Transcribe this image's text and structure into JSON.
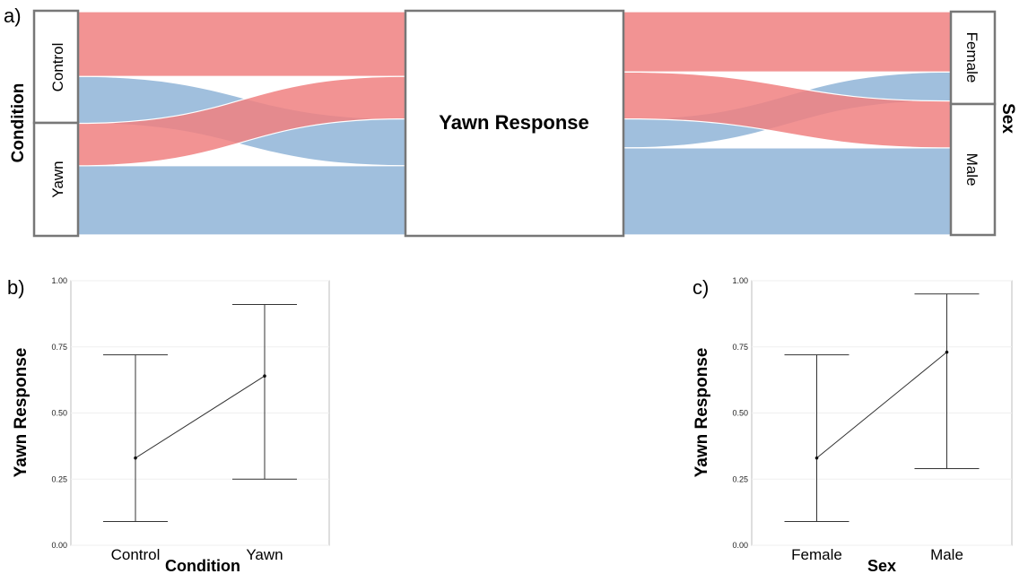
{
  "panels": {
    "a": "a)",
    "b": "b)",
    "c": "c)"
  },
  "colors": {
    "no_yawn": "#f08080",
    "yawn": "#8fb4d7",
    "frame": "#777777"
  },
  "chart_data": [
    {
      "type": "alluvial",
      "panel": "a)",
      "left_axis": {
        "title": "Condition",
        "strata": [
          "Control",
          "Yawn"
        ]
      },
      "center_axis": {
        "title": "Yawn Response"
      },
      "right_axis": {
        "title": "Sex",
        "strata": [
          "Female",
          "Male"
        ]
      },
      "flows_condition": [
        {
          "condition": "Control",
          "response": "no",
          "share": 0.29
        },
        {
          "condition": "Control",
          "response": "yes",
          "share": 0.21
        },
        {
          "condition": "Yawn",
          "response": "no",
          "share": 0.19
        },
        {
          "condition": "Yawn",
          "response": "yes",
          "share": 0.31
        }
      ],
      "flows_sex": [
        {
          "sex": "Female",
          "response": "no",
          "share": 0.27
        },
        {
          "sex": "Female",
          "response": "yes",
          "share": 0.13
        },
        {
          "sex": "Male",
          "response": "no",
          "share": 0.21
        },
        {
          "sex": "Male",
          "response": "yes",
          "share": 0.39
        }
      ]
    },
    {
      "type": "line",
      "panel": "b)",
      "xlabel": "Condition",
      "ylabel": "Yawn Response",
      "ylim": [
        0,
        1
      ],
      "yticks": [
        "0.00",
        "0.25",
        "0.50",
        "0.75",
        "1.00"
      ],
      "categories": [
        "Control",
        "Yawn"
      ],
      "values": [
        0.33,
        0.64
      ],
      "lower": [
        0.09,
        0.25
      ],
      "upper": [
        0.72,
        0.91
      ]
    },
    {
      "type": "line",
      "panel": "c)",
      "xlabel": "Sex",
      "ylabel": "Yawn Response",
      "ylim": [
        0,
        1
      ],
      "yticks": [
        "0.00",
        "0.25",
        "0.50",
        "0.75",
        "1.00"
      ],
      "categories": [
        "Female",
        "Male"
      ],
      "values": [
        0.33,
        0.73
      ],
      "lower": [
        0.09,
        0.29
      ],
      "upper": [
        0.72,
        0.95
      ]
    }
  ]
}
